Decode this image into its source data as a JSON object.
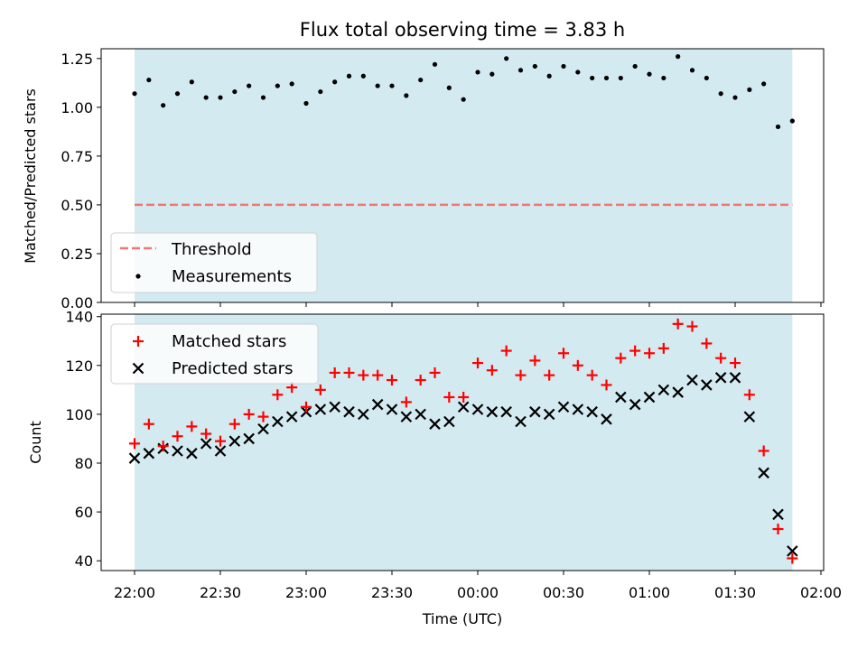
{
  "title": "Flux total observing time = 3.83 h",
  "colors": {
    "shade": "#d4eaf1",
    "threshold": "#f07676",
    "measurement": "#000000",
    "matched": "#ff0000",
    "predicted": "#000000"
  },
  "chart_data": [
    {
      "type": "scatter",
      "ylabel": "Matched/Predicted stars",
      "ylim": [
        0,
        1.3
      ],
      "yticks": [
        0,
        0.25,
        0.5,
        0.75,
        1.0,
        1.25
      ],
      "ytick_labels": [
        "0.00",
        "0.25",
        "0.50",
        "0.75",
        "1.00",
        "1.25"
      ],
      "legend": {
        "placement": "lower-left",
        "threshold_label": "Threshold",
        "measurements_label": "Measurements"
      },
      "threshold": 0.5,
      "x": [
        "22:00",
        "22:05",
        "22:10",
        "22:15",
        "22:20",
        "22:25",
        "22:30",
        "22:35",
        "22:40",
        "22:45",
        "22:50",
        "22:55",
        "23:00",
        "23:05",
        "23:10",
        "23:15",
        "23:20",
        "23:25",
        "23:30",
        "23:35",
        "23:40",
        "23:45",
        "23:50",
        "23:55",
        "00:00",
        "00:05",
        "00:10",
        "00:15",
        "00:20",
        "00:25",
        "00:30",
        "00:35",
        "00:40",
        "00:45",
        "00:50",
        "00:55",
        "01:00",
        "01:05",
        "01:10",
        "01:15",
        "01:20",
        "01:25",
        "01:30",
        "01:35",
        "01:40",
        "01:45",
        "01:50"
      ],
      "values": [
        1.07,
        1.14,
        1.01,
        1.07,
        1.13,
        1.05,
        1.05,
        1.08,
        1.11,
        1.05,
        1.11,
        1.12,
        1.02,
        1.08,
        1.13,
        1.16,
        1.16,
        1.11,
        1.11,
        1.06,
        1.14,
        1.22,
        1.1,
        1.04,
        1.18,
        1.17,
        1.25,
        1.19,
        1.21,
        1.16,
        1.21,
        1.18,
        1.15,
        1.15,
        1.15,
        1.21,
        1.17,
        1.15,
        1.26,
        1.19,
        1.15,
        1.07,
        1.05,
        1.09,
        1.12,
        0.9,
        0.93
      ]
    },
    {
      "type": "scatter",
      "xlabel": "Time (UTC)",
      "ylabel": "Count",
      "ylim": [
        36,
        141
      ],
      "yticks": [
        40,
        60,
        80,
        100,
        120,
        140
      ],
      "ytick_labels": [
        "40",
        "60",
        "80",
        "100",
        "120",
        "140"
      ],
      "xticks": [
        "22:00",
        "22:30",
        "23:00",
        "23:30",
        "00:00",
        "00:30",
        "01:00",
        "01:30",
        "02:00"
      ],
      "legend": {
        "placement": "top-left"
      },
      "x": [
        "22:00",
        "22:05",
        "22:10",
        "22:15",
        "22:20",
        "22:25",
        "22:30",
        "22:35",
        "22:40",
        "22:45",
        "22:50",
        "22:55",
        "23:00",
        "23:05",
        "23:10",
        "23:15",
        "23:20",
        "23:25",
        "23:30",
        "23:35",
        "23:40",
        "23:45",
        "23:50",
        "23:55",
        "00:00",
        "00:05",
        "00:10",
        "00:15",
        "00:20",
        "00:25",
        "00:30",
        "00:35",
        "00:40",
        "00:45",
        "00:50",
        "00:55",
        "01:00",
        "01:05",
        "01:10",
        "01:15",
        "01:20",
        "01:25",
        "01:30",
        "01:35",
        "01:40",
        "01:45",
        "01:50"
      ],
      "series": [
        {
          "name": "Matched stars",
          "marker": "+",
          "values": [
            88,
            96,
            87,
            91,
            95,
            92,
            89,
            96,
            100,
            99,
            108,
            111,
            103,
            110,
            117,
            117,
            116,
            116,
            114,
            105,
            114,
            117,
            107,
            107,
            121,
            118,
            126,
            116,
            122,
            116,
            125,
            120,
            116,
            112,
            123,
            126,
            125,
            127,
            137,
            136,
            129,
            123,
            121,
            108,
            85,
            53,
            41
          ]
        },
        {
          "name": "Predicted stars",
          "marker": "x",
          "values": [
            82,
            84,
            86,
            85,
            84,
            88,
            85,
            89,
            90,
            94,
            97,
            99,
            101,
            102,
            103,
            101,
            100,
            104,
            102,
            99,
            100,
            96,
            97,
            103,
            102,
            101,
            101,
            97,
            101,
            100,
            103,
            102,
            101,
            98,
            107,
            104,
            107,
            110,
            109,
            114,
            112,
            115,
            115,
            99,
            76,
            59,
            44
          ]
        }
      ]
    }
  ]
}
